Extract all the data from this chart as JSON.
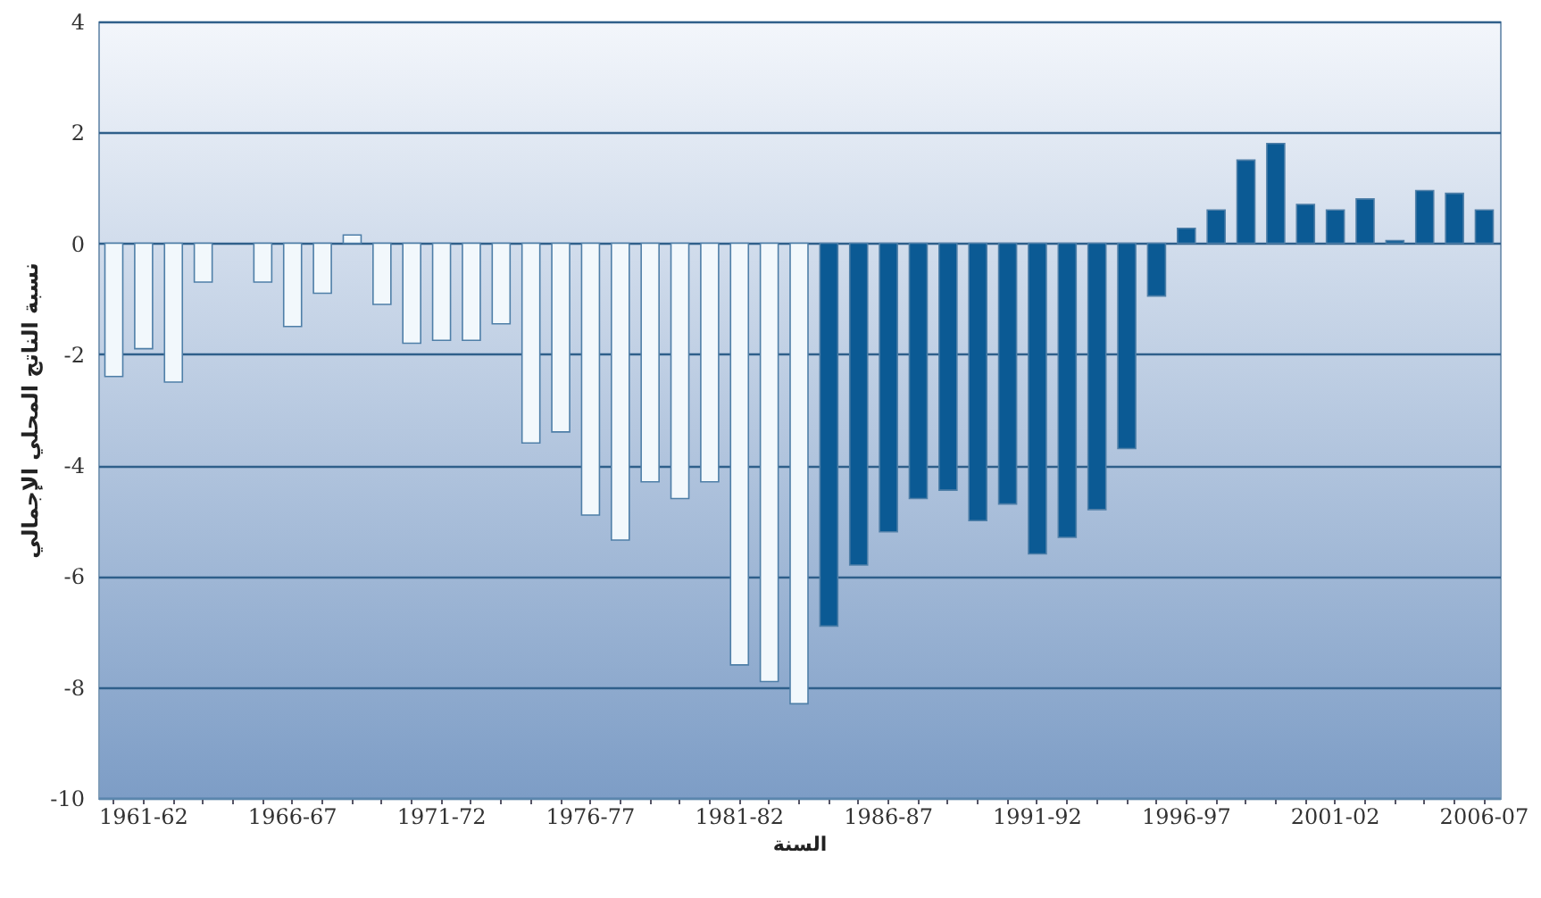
{
  "chart_data": {
    "type": "bar",
    "xlabel": "السنة",
    "ylabel": "نسبة الناتج المحلي الإجمالي",
    "categories": [
      null,
      "1961-62",
      null,
      null,
      null,
      null,
      "1966-67",
      null,
      null,
      null,
      null,
      "1971-72",
      null,
      null,
      null,
      null,
      "1976-77",
      null,
      null,
      null,
      null,
      "1981-82",
      null,
      null,
      null,
      null,
      "1986-87",
      null,
      null,
      null,
      null,
      "1991-92",
      null,
      null,
      null,
      null,
      "1996-97",
      null,
      null,
      null,
      null,
      "2001-02",
      null,
      null,
      null,
      null,
      "2006-07"
    ],
    "values": [
      -2.4,
      -1.9,
      -2.5,
      -0.7,
      null,
      -0.7,
      -1.5,
      -0.9,
      0.15,
      -1.1,
      -1.8,
      -1.75,
      -1.75,
      -1.45,
      -3.6,
      -3.4,
      -4.9,
      -5.35,
      -4.3,
      -4.6,
      -4.3,
      -7.6,
      -7.9,
      -8.3,
      -6.9,
      -5.8,
      -5.2,
      -4.6,
      -4.45,
      -5.0,
      -4.7,
      -5.6,
      -5.3,
      -4.8,
      -3.7,
      -0.95,
      0.27,
      0.6,
      1.5,
      1.8,
      0.7,
      0.6,
      0.8,
      0.05,
      0.95,
      0.9,
      0.6
    ],
    "colors": [
      "#f2f8fc",
      "#f2f8fc",
      "#f2f8fc",
      "#f2f8fc",
      "#f2f8fc",
      "#f2f8fc",
      "#f2f8fc",
      "#f2f8fc",
      "#f2f8fc",
      "#f2f8fc",
      "#f2f8fc",
      "#f2f8fc",
      "#f2f8fc",
      "#f2f8fc",
      "#f2f8fc",
      "#f2f8fc",
      "#f2f8fc",
      "#f2f8fc",
      "#f2f8fc",
      "#f2f8fc",
      "#f2f8fc",
      "#f2f8fc",
      "#f2f8fc",
      "#f2f8fc",
      "#0b5a94",
      "#0b5a94",
      "#0b5a94",
      "#0b5a94",
      "#0b5a94",
      "#0b5a94",
      "#0b5a94",
      "#0b5a94",
      "#0b5a94",
      "#0b5a94",
      "#0b5a94",
      "#0b5a94",
      "#0b5a94",
      "#0b5a94",
      "#0b5a94",
      "#0b5a94",
      "#0b5a94",
      "#0b5a94",
      "#0b5a94",
      "#0b5a94",
      "#0b5a94",
      "#0b5a94",
      "#0b5a94"
    ],
    "ylim": [
      -10,
      4
    ],
    "yticks": [
      -10,
      -8,
      -6,
      -4,
      -2,
      0,
      2,
      4
    ],
    "grid": "y"
  }
}
